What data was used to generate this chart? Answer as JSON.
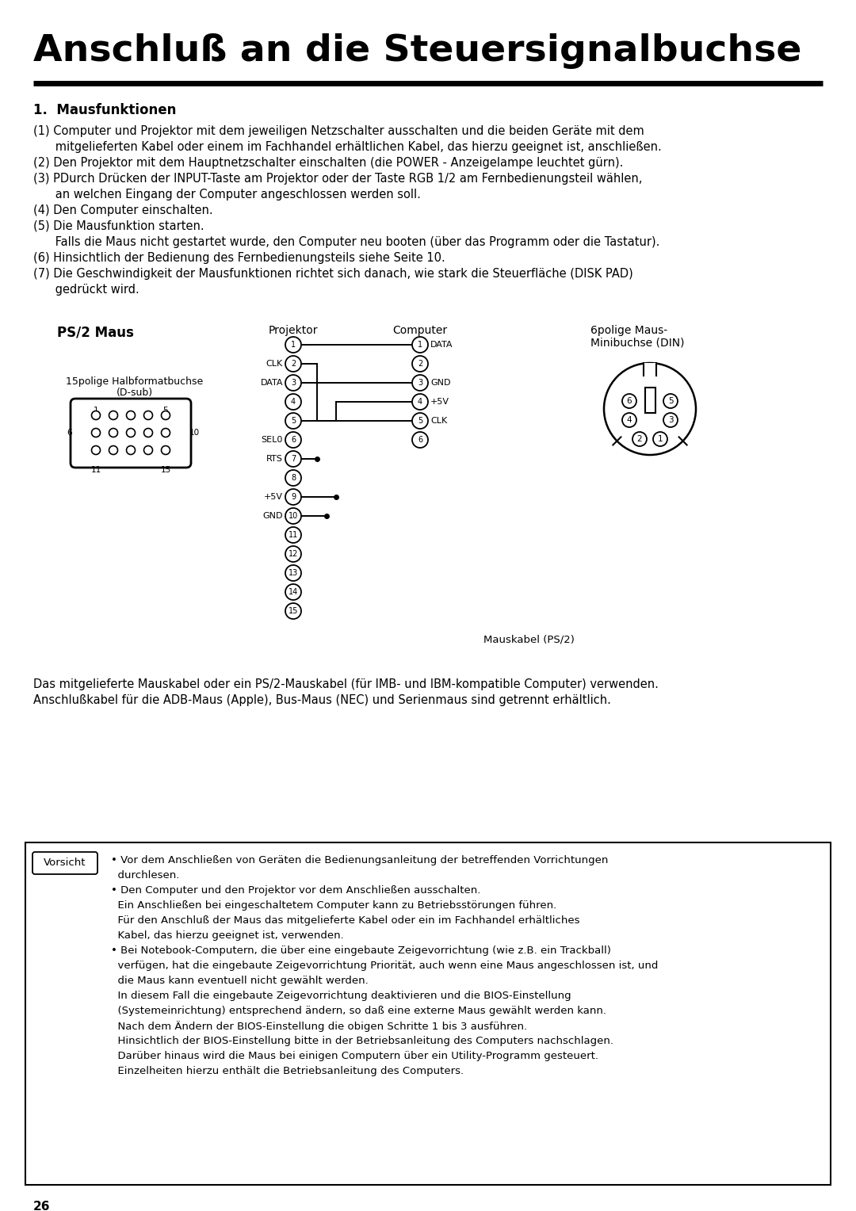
{
  "title": "Anschluß an die Steuersignalbuchse",
  "section_title": "1.  Mausfunktionen",
  "body_lines": [
    "(1) Computer und Projektor mit dem jeweiligen Netzschalter ausschalten und die beiden Geräte mit dem",
    "      mitgelieferten Kabel oder einem im Fachhandel erhältlichen Kabel, das hierzu geeignet ist, anschließen.",
    "(2) Den Projektor mit dem Hauptnetzschalter einschalten (die POWER - Anzeigelampe leuchtet gürn).",
    "(3) PDurch Drücken der INPUT-Taste am Projektor oder der Taste RGB 1/2 am Fernbedienungsteil wählen,",
    "      an welchen Eingang der Computer angeschlossen werden soll.",
    "(4) Den Computer einschalten.",
    "(5) Die Mausfunktion starten.",
    "      Falls die Maus nicht gestartet wurde, den Computer neu booten (über das Programm oder die Tastatur).",
    "(6) Hinsichtlich der Bedienung des Fernbedienungsteils siehe Seite 10.",
    "(7) Die Geschwindigkeit der Mausfunktionen richtet sich danach, wie stark die Steuerfläche (DISK PAD)",
    "      gedrückt wird."
  ],
  "diagram_label_ps2": "PS/2 Maus",
  "diagram_label_projektor": "Projektor",
  "diagram_label_computer": "Computer",
  "diagram_label_6pol_line1": "6polige Maus-",
  "diagram_label_6pol_line2": "Minibuchse (DIN)",
  "diagram_label_15pol_line1": "15polige Halbformatbuchse",
  "diagram_label_15pol_line2": "(D-sub)",
  "diagram_label_mauskabel": "Mauskabel (PS/2)",
  "projektor_labels": [
    "",
    "CLK",
    "DATA",
    "",
    "",
    "SEL0",
    "RTS",
    "",
    "+5V",
    "GND",
    "",
    "",
    "",
    "",
    ""
  ],
  "computer_labels": [
    "DATA",
    "",
    "GND",
    "+5V",
    "CLK",
    ""
  ],
  "bottom_text1": "Das mitgelieferte Mauskabel oder ein PS/2-Mauskabel (für IMB- und IBM-kompatible Computer) verwenden.",
  "bottom_text2": "Anschlußkabel für die ADB-Maus (Apple), Bus-Maus (NEC) und Serienmaus sind getrennt erhältlich.",
  "warning_title": "Vorsicht",
  "warn_lines": [
    "• Vor dem Anschließen von Geräten die Bedienungsanleitung der betreffenden Vorrichtungen",
    "  durchlesen.",
    "• Den Computer und den Projektor vor dem Anschließen ausschalten.",
    "  Ein Anschließen bei eingeschaltetem Computer kann zu Betriebsstörungen führen.",
    "  Für den Anschluß der Maus das mitgelieferte Kabel oder ein im Fachhandel erhältliches",
    "  Kabel, das hierzu geeignet ist, verwenden.",
    "• Bei Notebook-Computern, die über eine eingebaute Zeigevorrichtung (wie z.B. ein Trackball)",
    "  verfügen, hat die eingebaute Zeigevorrichtung Priorität, auch wenn eine Maus angeschlossen ist, und",
    "  die Maus kann eventuell nicht gewählt werden.",
    "  In diesem Fall die eingebaute Zeigevorrichtung deaktivieren und die BIOS-Einstellung",
    "  (Systemeinrichtung) entsprechend ändern, so daß eine externe Maus gewählt werden kann.",
    "  Nach dem Ändern der BIOS-Einstellung die obigen Schritte 1 bis 3 ausführen.",
    "  Hinsichtlich der BIOS-Einstellung bitte in der Betriebsanleitung des Computers nachschlagen.",
    "  Darüber hinaus wird die Maus bei einigen Computern über ein Utility-Programm gesteuert.",
    "  Einzelheiten hierzu enthält die Betriebsanleitung des Computers."
  ],
  "page_number": "26",
  "bg_color": "#ffffff",
  "text_color": "#000000"
}
